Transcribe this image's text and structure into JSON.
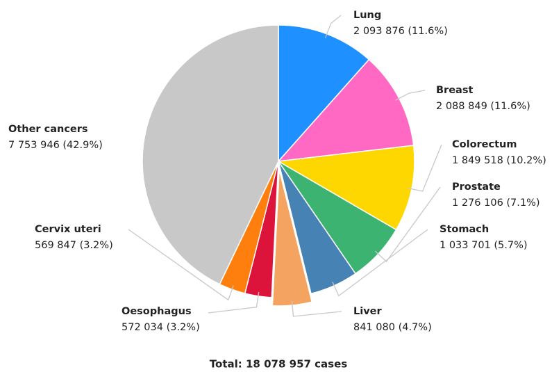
{
  "chart_data": {
    "type": "pie",
    "footer": "Total: 18 078 957 cases",
    "categories": [
      "Lung",
      "Breast",
      "Colorectum",
      "Prostate",
      "Stomach",
      "Liver",
      "Oesophagus",
      "Cervix uteri",
      "Other cancers"
    ],
    "values": [
      2093876,
      2088849,
      1849518,
      1276106,
      1033701,
      841080,
      572034,
      569847,
      7753946
    ],
    "value_labels": [
      "2 093 876 (11.6%)",
      "2 088 849 (11.6%)",
      "1 849 518 (10.2%)",
      "1 276 106 (7.1%)",
      "1 033 701 (5.7%)",
      "841 080 (4.7%)",
      "572 034 (3.2%)",
      "569 847 (3.2%)",
      "7 753 946 (42.9%)"
    ],
    "colors": [
      "#1e90ff",
      "#ff69c4",
      "#ffd700",
      "#3cb371",
      "#4682b4",
      "#f4a460",
      "#dc143c",
      "#ff7f0e",
      "#c8c8c8"
    ],
    "explode": [
      false,
      false,
      false,
      false,
      false,
      true,
      false,
      false,
      false
    ]
  }
}
